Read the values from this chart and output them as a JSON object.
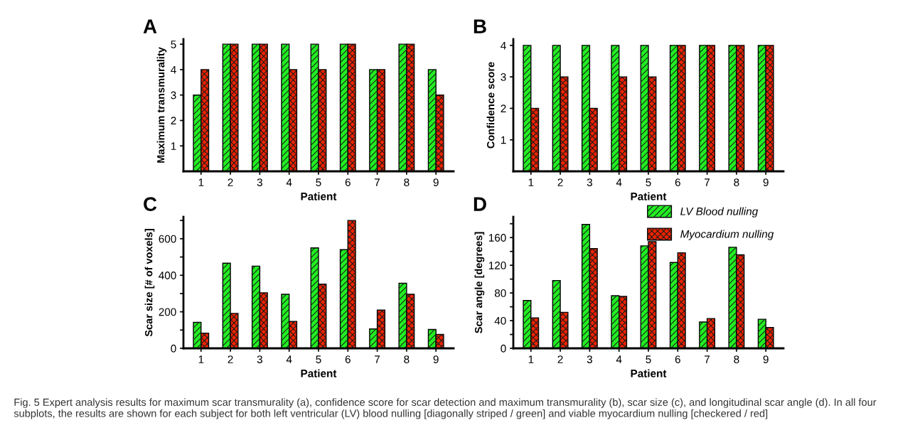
{
  "chart_data": [
    {
      "type": "bar",
      "title": "A",
      "xlabel": "Patient",
      "ylabel": "Maximum transmurality",
      "categories": [
        "1",
        "2",
        "3",
        "4",
        "5",
        "6",
        "7",
        "8",
        "9"
      ],
      "ylim": [
        0,
        5.2
      ],
      "yticks": [
        1,
        2,
        3,
        4,
        5
      ],
      "legend": false,
      "grid": false,
      "series": [
        {
          "color": "#22ee22",
          "values": [
            3,
            5,
            5,
            5,
            5,
            5,
            4,
            5,
            4
          ]
        },
        {
          "color": "#ee2200",
          "values": [
            4,
            5,
            5,
            4,
            4,
            5,
            4,
            5,
            3
          ]
        }
      ]
    },
    {
      "type": "bar",
      "title": "B",
      "xlabel": "Patient",
      "ylabel": "Confidence score",
      "categories": [
        "1",
        "2",
        "3",
        "4",
        "5",
        "6",
        "7",
        "8",
        "9"
      ],
      "ylim": [
        0,
        4.2
      ],
      "yticks": [
        1,
        2,
        3,
        4
      ],
      "legend": false,
      "grid": false,
      "series": [
        {
          "color": "#22ee22",
          "values": [
            4,
            4,
            4,
            4,
            4,
            4,
            4,
            4,
            4
          ]
        },
        {
          "color": "#ee2200",
          "values": [
            2,
            3,
            2,
            3,
            3,
            4,
            4,
            4,
            4
          ]
        }
      ]
    },
    {
      "type": "bar",
      "title": "C",
      "xlabel": "Patient",
      "ylabel": "Scar size [# of voxels]",
      "categories": [
        "1",
        "2",
        "3",
        "4",
        "5",
        "6",
        "7",
        "8",
        "9"
      ],
      "ylim": [
        0,
        720
      ],
      "yticks": [
        0,
        {
          "value": 100,
          "label": null
        },
        200,
        {
          "value": 300,
          "label": null
        },
        400,
        {
          "value": 500,
          "label": null
        },
        600,
        {
          "value": 700,
          "label": null
        }
      ],
      "legend": false,
      "grid": false,
      "series": [
        {
          "color": "#22ee22",
          "values": [
            142,
            466,
            450,
            296,
            550,
            540,
            106,
            356,
            103
          ]
        },
        {
          "color": "#ee2200",
          "values": [
            83,
            191,
            304,
            147,
            351,
            700,
            209,
            296,
            76
          ]
        }
      ]
    },
    {
      "type": "bar",
      "title": "D",
      "xlabel": "Patient",
      "ylabel": "Scar angle [degrees]",
      "categories": [
        "1",
        "2",
        "3",
        "4",
        "5",
        "6",
        "7",
        "8",
        "9"
      ],
      "ylim": [
        0,
        190
      ],
      "yticks": [
        0,
        {
          "value": 20,
          "label": null
        },
        40,
        {
          "value": 60,
          "label": null
        },
        80,
        {
          "value": 100,
          "label": null
        },
        120,
        {
          "value": 140,
          "label": null
        },
        160,
        {
          "value": 180,
          "label": null
        }
      ],
      "legend": "top right",
      "grid": false,
      "series": [
        {
          "name": "LV Blood nulling",
          "color": "#22ee22",
          "values": [
            69,
            98,
            179,
            76,
            148,
            124,
            38,
            146,
            42
          ]
        },
        {
          "name": "Myocardium nulling",
          "color": "#ee2200",
          "values": [
            44,
            52,
            144,
            75,
            154,
            138,
            43,
            135,
            30
          ]
        }
      ],
      "annotations": [
        "Fig. 5 Expert analysis results for maximum scar transmurality (a), confidence score for scar detection and maximum transmurality (b), scar size (c), and longitudinal scar angle (d). In all four subplots, the results are shown for each subject for both left ventricular (LV) blood nulling [diagonally striped / green] and viable myocardium nulling [checkered / red]"
      ]
    }
  ]
}
